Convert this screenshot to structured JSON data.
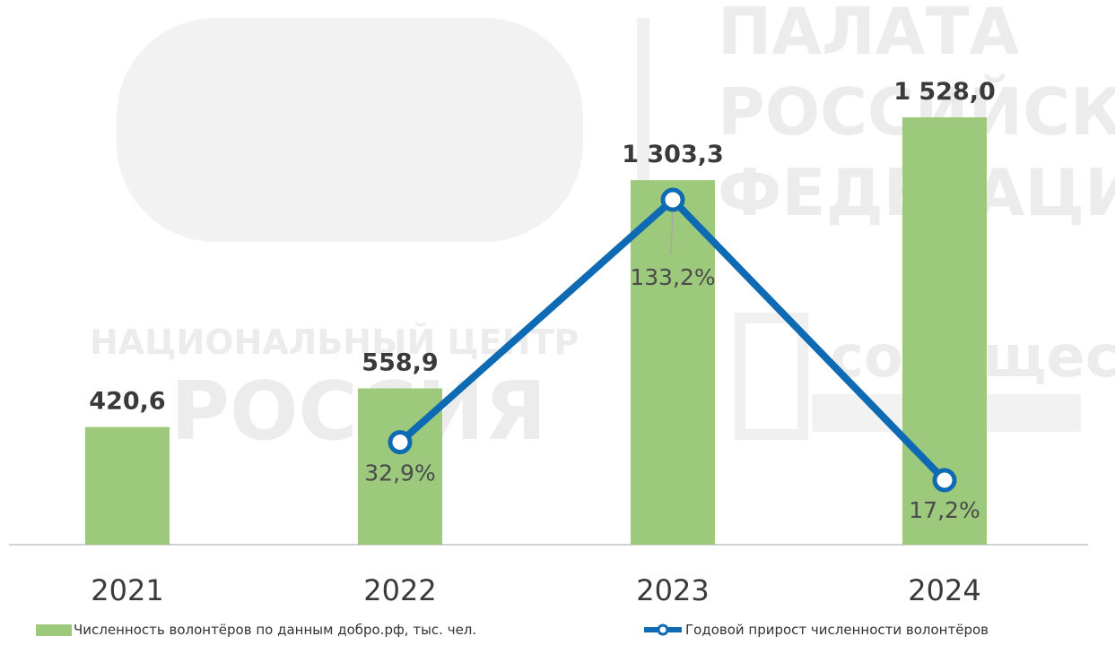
{
  "watermark": {
    "right_words": [
      "ПАЛАТА",
      "РОССИЙСКОЙ",
      "ФЕДЕРАЦИИ"
    ],
    "center_line1": "НАЦИОНАЛЬНЫЙ ЦЕНТР",
    "center_line2": "РОССИЯ",
    "right_lower": "сообщество"
  },
  "chart_data": {
    "type": "bar",
    "categories": [
      "2021",
      "2022",
      "2023",
      "2024"
    ],
    "series": [
      {
        "name": "Численность волонтёров по данным добро.рф, тыс. чел.",
        "type": "bar",
        "color": "#9cc97c",
        "values": [
          420.6,
          558.9,
          1303.3,
          1528.0
        ],
        "labels": [
          "420,6",
          "558,9",
          "1 303,3",
          "1 528,0"
        ]
      },
      {
        "name": "Годовой прирост численности волонтёров",
        "type": "line",
        "color": "#0f6ab4",
        "values": [
          null,
          32.9,
          133.2,
          17.2
        ],
        "labels": [
          "",
          "32,9%",
          "133,2%",
          "17,2%"
        ]
      }
    ],
    "ylim": [
      0,
      1650
    ],
    "grid": false,
    "legend_position": "bottom"
  }
}
